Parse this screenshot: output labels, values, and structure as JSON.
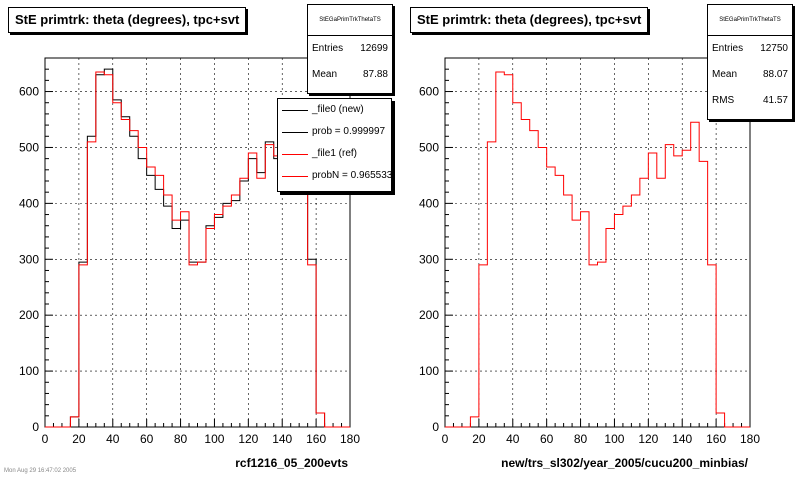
{
  "chart_data": [
    {
      "type": "histogram",
      "title": "StE primtrk: theta (degrees), tpc+svt",
      "xlabel": "rcf1216_05_200evts",
      "ylabel": "",
      "xlim": [
        0,
        180
      ],
      "ylim": [
        0,
        660
      ],
      "x_ticks": [
        "0",
        "20",
        "40",
        "60",
        "80",
        "100",
        "120",
        "140",
        "160",
        "180"
      ],
      "y_ticks": [
        "0",
        "100",
        "200",
        "300",
        "400",
        "500",
        "600"
      ],
      "grid": true,
      "bin_edges": [
        0,
        5,
        10,
        15,
        20,
        25,
        30,
        35,
        40,
        45,
        50,
        55,
        60,
        65,
        70,
        75,
        80,
        85,
        90,
        95,
        100,
        105,
        110,
        115,
        120,
        125,
        130,
        135,
        140,
        145,
        150,
        155,
        160,
        165,
        170,
        175,
        180
      ],
      "series": [
        {
          "name": "_file0 (new)",
          "color": "#000000",
          "values": [
            0,
            0,
            0,
            18,
            295,
            520,
            630,
            640,
            585,
            555,
            520,
            480,
            450,
            425,
            395,
            355,
            370,
            295,
            295,
            360,
            375,
            400,
            405,
            440,
            480,
            455,
            510,
            480,
            500,
            500,
            470,
            300,
            25,
            0,
            0,
            0
          ]
        },
        {
          "name": "_file1 (ref)",
          "color": "#ff0000",
          "values": [
            0,
            0,
            0,
            18,
            290,
            510,
            635,
            630,
            580,
            550,
            530,
            500,
            465,
            450,
            415,
            370,
            385,
            290,
            295,
            355,
            380,
            395,
            415,
            445,
            490,
            445,
            505,
            485,
            495,
            545,
            475,
            290,
            25,
            0,
            0,
            0
          ]
        }
      ],
      "stats": {
        "name": "StEGaPrimTrkThetaTS",
        "entries_label": "Entries",
        "entries": "12699",
        "mean_label": "Mean",
        "mean": "87.88"
      },
      "legend": [
        {
          "label": "_file0 (new)",
          "color": "#000000"
        },
        {
          "label": "prob = 0.999997",
          "color": "#000000"
        },
        {
          "label": "_file1 (ref)",
          "color": "#ff0000"
        },
        {
          "label": "probN = 0.965533",
          "color": "#ff0000"
        }
      ]
    },
    {
      "type": "histogram",
      "title": "StE primtrk: theta (degrees), tpc+svt",
      "xlabel": "new/trs_sl302/year_2005/cucu200_minbias/",
      "ylabel": "",
      "xlim": [
        0,
        180
      ],
      "ylim": [
        0,
        660
      ],
      "x_ticks": [
        "0",
        "20",
        "40",
        "60",
        "80",
        "100",
        "120",
        "140",
        "160",
        "180"
      ],
      "y_ticks": [
        "0",
        "100",
        "200",
        "300",
        "400",
        "500",
        "600"
      ],
      "grid": true,
      "bin_edges": [
        0,
        5,
        10,
        15,
        20,
        25,
        30,
        35,
        40,
        45,
        50,
        55,
        60,
        65,
        70,
        75,
        80,
        85,
        90,
        95,
        100,
        105,
        110,
        115,
        120,
        125,
        130,
        135,
        140,
        145,
        150,
        155,
        160,
        165,
        170,
        175,
        180
      ],
      "series": [
        {
          "name": "",
          "color": "#ff0000",
          "values": [
            0,
            0,
            0,
            18,
            290,
            510,
            635,
            630,
            580,
            550,
            530,
            500,
            465,
            450,
            415,
            370,
            385,
            290,
            295,
            355,
            380,
            395,
            415,
            445,
            490,
            445,
            505,
            485,
            495,
            545,
            475,
            290,
            25,
            0,
            0,
            0
          ]
        }
      ],
      "stats": {
        "name": "StEGaPrimTrkThetaTS",
        "entries_label": "Entries",
        "entries": "12750",
        "mean_label": "Mean",
        "mean": "88.07",
        "rms_label": "RMS",
        "rms": "41.57"
      }
    }
  ],
  "footer": "Mon Aug 29 16:47:02 2005"
}
